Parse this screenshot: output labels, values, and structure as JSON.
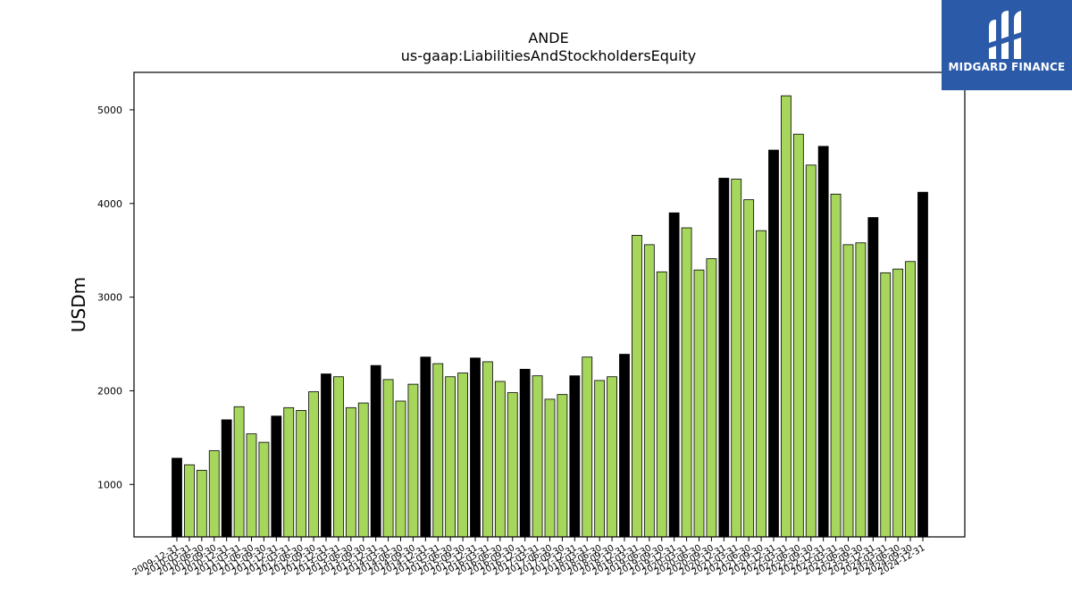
{
  "brand": {
    "name": "MIDGARD FINANCE",
    "bg_color": "#2b5aa8",
    "icon": "midgard-logo-icon"
  },
  "chart_data": {
    "type": "bar",
    "title": "ANDE",
    "subtitle": "us-gaap:LiabilitiesAndStockholdersEquity",
    "ylabel": "USDm",
    "xlabel": "",
    "ylim": [
      440,
      5400
    ],
    "yticks": [
      1000,
      2000,
      3000,
      4000,
      5000
    ],
    "grid": false,
    "colors": {
      "annual": "#000000",
      "quarterly": "#a6d65c"
    },
    "categories": [
      "2009-12-31",
      "2010-03-31",
      "2010-06-30",
      "2010-09-30",
      "2010-12-31",
      "2011-03-31",
      "2011-06-30",
      "2011-09-30",
      "2011-12-31",
      "2012-03-31",
      "2012-06-30",
      "2012-09-30",
      "2012-12-31",
      "2013-03-31",
      "2013-06-30",
      "2013-09-30",
      "2013-12-31",
      "2014-03-31",
      "2014-06-30",
      "2014-09-30",
      "2014-12-31",
      "2015-03-31",
      "2015-06-30",
      "2015-09-30",
      "2015-12-31",
      "2016-03-31",
      "2016-06-30",
      "2016-09-30",
      "2016-12-31",
      "2017-03-31",
      "2017-06-30",
      "2017-09-30",
      "2017-12-31",
      "2018-03-31",
      "2018-06-30",
      "2018-09-30",
      "2018-12-31",
      "2019-03-31",
      "2019-06-30",
      "2019-09-30",
      "2019-12-31",
      "2020-03-31",
      "2020-06-30",
      "2020-09-30",
      "2020-12-31",
      "2021-03-31",
      "2021-06-30",
      "2021-09-30",
      "2021-12-31",
      "2022-03-31",
      "2022-06-30",
      "2022-09-30",
      "2022-12-31",
      "2023-03-31",
      "2023-06-30",
      "2023-09-30",
      "2023-12-31",
      "2024-03-31",
      "2024-06-30",
      "2024-09-30",
      "2024-12-31"
    ],
    "values": [
      1280,
      1210,
      1150,
      1360,
      1690,
      1830,
      1540,
      1450,
      1730,
      1820,
      1790,
      1990,
      2180,
      2150,
      1820,
      1870,
      2270,
      2120,
      1890,
      2070,
      2360,
      2290,
      2150,
      2190,
      2350,
      2310,
      2100,
      1980,
      2230,
      2160,
      1910,
      1960,
      2160,
      2360,
      2110,
      2150,
      2390,
      3660,
      3560,
      3270,
      3900,
      3740,
      3290,
      3410,
      4270,
      4260,
      4040,
      3710,
      4570,
      5150,
      4740,
      4410,
      4610,
      4100,
      3560,
      3580,
      3850,
      3260,
      3300,
      3380,
      4120
    ],
    "annual_flags": [
      true,
      false,
      false,
      false,
      true,
      false,
      false,
      false,
      true,
      false,
      false,
      false,
      true,
      false,
      false,
      false,
      true,
      false,
      false,
      false,
      true,
      false,
      false,
      false,
      true,
      false,
      false,
      false,
      true,
      false,
      false,
      false,
      true,
      false,
      false,
      false,
      true,
      false,
      false,
      false,
      true,
      false,
      false,
      false,
      true,
      false,
      false,
      false,
      true,
      false,
      false,
      false,
      true,
      false,
      false,
      false,
      true,
      false,
      false,
      false,
      true
    ]
  }
}
